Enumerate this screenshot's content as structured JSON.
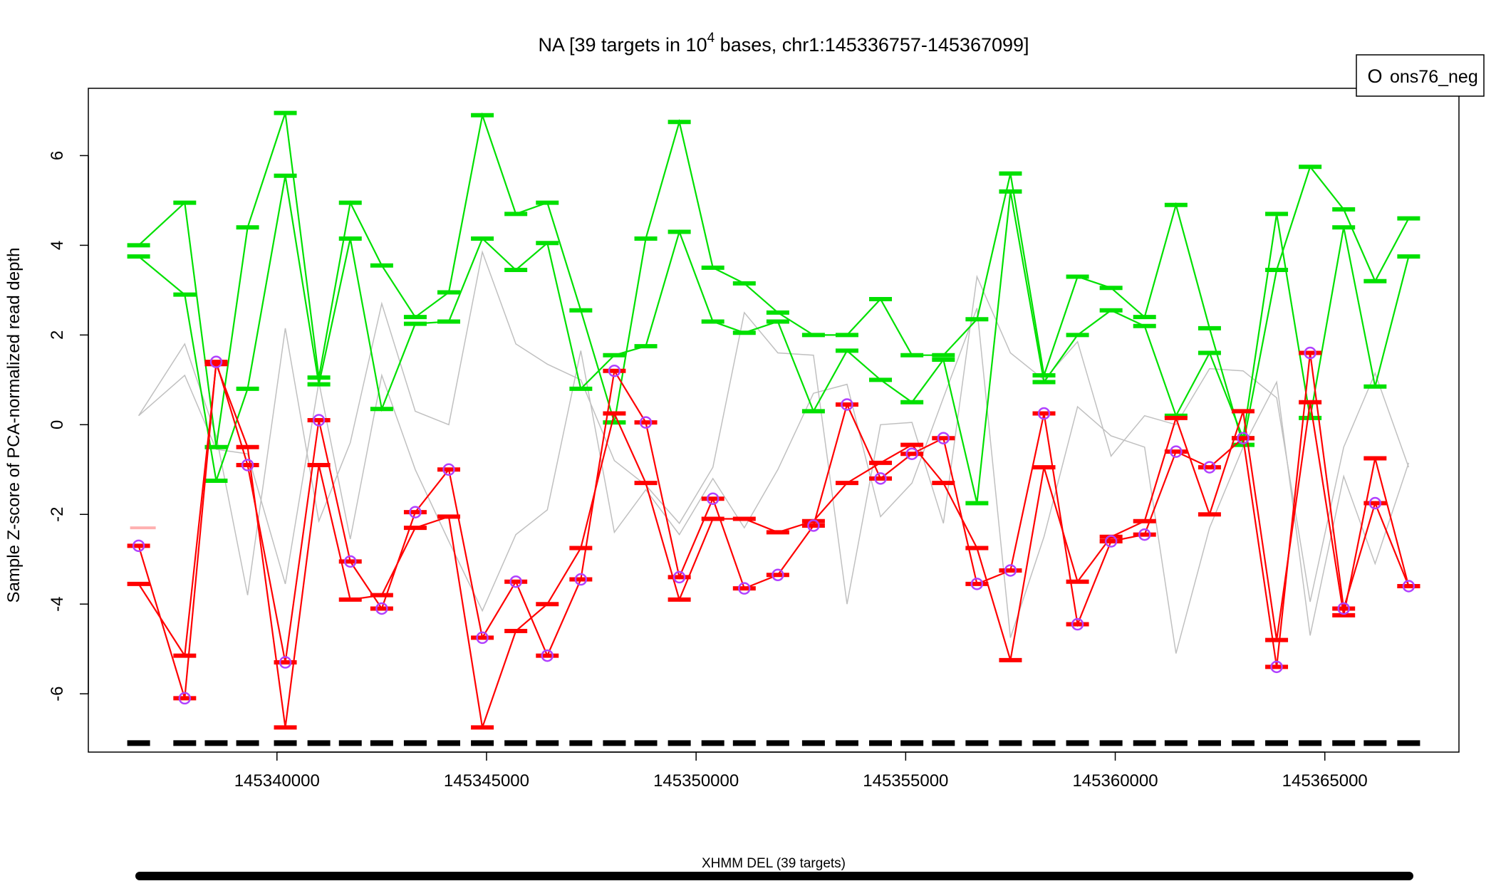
{
  "chart_data": {
    "type": "line",
    "title_prefix": "NA [39 targets in 10",
    "title_exp": "4",
    "title_suffix": " bases, chr1:145336757-145367099]",
    "ylabel": "Sample Z-score of PCA-normalized read depth",
    "xlabel": "",
    "xlim": [
      145335500,
      145368200
    ],
    "ylim": [
      -7.3,
      7.5
    ],
    "x_ticks": [
      145340000,
      145345000,
      145350000,
      145355000,
      145360000,
      145365000
    ],
    "x_tick_labels": [
      "145340000",
      "145345000",
      "145350000",
      "145355000",
      "145360000",
      "145365000"
    ],
    "y_ticks": [
      -6,
      -4,
      -2,
      0,
      2,
      4,
      6
    ],
    "y_tick_labels": [
      "-6",
      "-4",
      "-2",
      "0",
      "2",
      "4",
      "6"
    ],
    "legend": {
      "position": "top-right",
      "label": "ons76_neg",
      "symbol": "O",
      "color": "#b040ff"
    },
    "call_label": "XHMM DEL (39 targets)",
    "colors": {
      "green": "#00e000",
      "red": "#ff0000",
      "gray": "#c0c0c0",
      "pink": "#ffb0b0",
      "marker": "#b040ff",
      "black": "#000000"
    },
    "x": [
      145336700,
      145337800,
      145338550,
      145339300,
      145340200,
      145341000,
      145341750,
      145342500,
      145343300,
      145344100,
      145344900,
      145345700,
      145346450,
      145347250,
      145348050,
      145348800,
      145349600,
      145350400,
      145351150,
      145351950,
      145352800,
      145353600,
      145354400,
      145355150,
      145355900,
      145356700,
      145357500,
      145358300,
      145359100,
      145359900,
      145360700,
      145361450,
      145362250,
      145363050,
      145363850,
      145364650,
      145365450,
      145366200,
      145367000
    ],
    "series": [
      {
        "color_key": "green",
        "values": [
          4.0,
          4.95,
          -0.5,
          4.4,
          6.95,
          1.05,
          4.95,
          3.55,
          2.4,
          2.95,
          6.9,
          4.7,
          4.95,
          2.55,
          0.05,
          4.15,
          6.75,
          3.5,
          3.15,
          2.5,
          2.0,
          2.0,
          2.8,
          1.55,
          1.55,
          2.35,
          5.6,
          1.1,
          3.3,
          3.05,
          2.4,
          4.9,
          2.15,
          -0.45,
          3.45,
          5.75,
          4.8,
          3.2,
          4.6
        ]
      },
      {
        "color_key": "green",
        "values": [
          3.75,
          2.9,
          -1.25,
          0.8,
          5.55,
          0.9,
          4.15,
          0.35,
          2.25,
          2.3,
          4.15,
          3.45,
          4.05,
          0.8,
          1.55,
          1.75,
          4.3,
          2.3,
          2.05,
          2.3,
          0.3,
          1.65,
          1.0,
          0.5,
          1.45,
          -1.75,
          5.2,
          0.95,
          2.0,
          2.55,
          2.2,
          0.2,
          1.6,
          -0.3,
          4.7,
          0.15,
          4.4,
          0.85,
          3.75
        ]
      },
      {
        "color_key": "gray",
        "values": [
          0.2,
          1.8,
          -0.25,
          -3.8,
          2.15,
          -2.15,
          -0.4,
          2.7,
          0.3,
          0.0,
          3.85,
          1.8,
          1.35,
          1.0,
          -0.8,
          -1.35,
          -2.2,
          -0.95,
          2.5,
          1.6,
          1.55,
          -4.0,
          0.0,
          0.05,
          -2.2,
          3.3,
          1.6,
          1.0,
          1.85,
          -0.7,
          0.2,
          0.0,
          1.25,
          1.2,
          0.6,
          -3.95,
          -0.5,
          1.15,
          -0.95
        ]
      },
      {
        "color_key": "gray",
        "values": [
          0.2,
          1.1,
          -0.55,
          -0.65,
          -3.55,
          0.95,
          -2.55,
          1.1,
          -1.0,
          -2.6,
          -4.15,
          -2.45,
          -1.9,
          1.65,
          -2.4,
          -1.45,
          -2.45,
          -1.2,
          -2.3,
          -1.0,
          0.7,
          0.9,
          -2.05,
          -1.3,
          0.6,
          2.6,
          -4.75,
          -2.5,
          0.4,
          -0.25,
          -0.5,
          -5.1,
          -2.3,
          -0.5,
          0.95,
          -4.7,
          -1.15,
          -3.1,
          -0.85
        ]
      },
      {
        "color_key": "red",
        "values": [
          -3.55,
          -5.15,
          1.35,
          -0.5,
          -6.75,
          -0.9,
          -3.9,
          -3.8,
          -2.3,
          -2.05,
          -6.75,
          -4.6,
          -4.0,
          -2.75,
          0.25,
          -1.3,
          -3.9,
          -2.1,
          -2.1,
          -2.4,
          -2.15,
          -1.3,
          -0.85,
          -0.45,
          -1.3,
          -2.75,
          -5.25,
          -0.95,
          -3.5,
          -2.5,
          -2.15,
          0.15,
          -2.0,
          0.3,
          -4.8,
          0.5,
          -4.25,
          -0.75,
          -3.6
        ]
      },
      {
        "color_key": "red",
        "marker": true,
        "values": [
          -2.7,
          -6.1,
          1.4,
          -0.9,
          -5.3,
          0.1,
          -3.05,
          -4.1,
          -1.95,
          -1.0,
          -4.75,
          -3.5,
          -5.15,
          -3.45,
          1.2,
          0.05,
          -3.4,
          -1.65,
          -3.65,
          -3.35,
          -2.25,
          0.45,
          -1.2,
          -0.65,
          -0.3,
          -3.55,
          -3.25,
          0.25,
          -4.45,
          -2.6,
          -2.45,
          -0.6,
          -0.95,
          -0.3,
          -5.4,
          1.6,
          -4.1,
          -1.75,
          -3.6
        ]
      }
    ],
    "pink_value": -2.3,
    "baseline_value": -7.1
  }
}
